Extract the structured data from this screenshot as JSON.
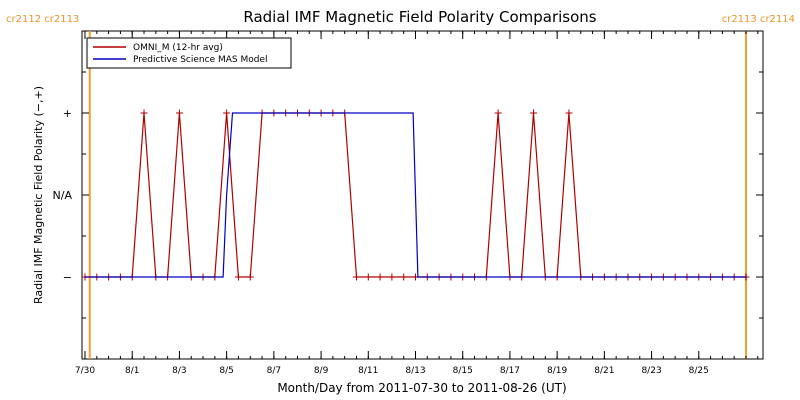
{
  "chart_data": {
    "type": "line",
    "title": "Radial IMF Magnetic Field Polarity Comparisons",
    "xlabel": "Month/Day from 2011-07-30 to 2011-08-26 (UT)",
    "ylabel": "Radial IMF Magnetic Field Polarity (−,+)",
    "x_tick_labels": [
      "7/30",
      "8/1",
      "8/3",
      "8/5",
      "8/7",
      "8/9",
      "8/11",
      "8/13",
      "8/15",
      "8/17",
      "8/19",
      "8/21",
      "8/23",
      "8/25"
    ],
    "x_tick_days": [
      0,
      2,
      4,
      6,
      8,
      10,
      12,
      14,
      16,
      18,
      20,
      22,
      24,
      26
    ],
    "x_minor_step_days": 0.5,
    "xlim": [
      0,
      28.6
    ],
    "ylim": [
      -2,
      2
    ],
    "y_ticks": [
      {
        "value": -1,
        "label": "−"
      },
      {
        "value": 0,
        "label": "N/A"
      },
      {
        "value": 1,
        "label": "+"
      }
    ],
    "carrington_boundaries": [
      {
        "day": 0.2,
        "label": "cr2112 cr2113",
        "label_anchor": "left"
      },
      {
        "day": 28.0,
        "label": "cr2113 cr2114",
        "label_anchor": "right"
      }
    ],
    "boundary_color": "#f0a030",
    "legend": {
      "position": "top-left"
    },
    "series": [
      {
        "name": "OMNI_M (12-hr avg)",
        "color": "#b00000",
        "markers": true,
        "x": [
          0,
          0.5,
          1,
          1.5,
          2,
          2.5,
          3,
          3.5,
          4,
          4.5,
          5,
          5.5,
          6,
          6.5,
          7,
          7.5,
          8,
          8.5,
          9,
          9.5,
          10,
          10.5,
          11,
          11.5,
          12,
          12.5,
          13,
          13.5,
          14,
          14.5,
          15,
          15.5,
          16,
          16.5,
          17,
          17.5,
          18,
          18.5,
          19,
          19.5,
          20,
          20.5,
          21,
          21.5,
          22,
          22.5,
          23,
          23.5,
          24,
          24.5,
          25,
          25.5,
          26,
          26.5,
          27,
          27.5,
          28
        ],
        "y": [
          -1,
          -1,
          -1,
          -1,
          -1,
          1,
          -1,
          -1,
          1,
          -1,
          -1,
          -1,
          1,
          -1,
          -1,
          1,
          1,
          1,
          1,
          1,
          1,
          1,
          1,
          -1,
          -1,
          -1,
          -1,
          -1,
          -1,
          -1,
          -1,
          -1,
          -1,
          -1,
          -1,
          1,
          -1,
          -1,
          1,
          -1,
          -1,
          1,
          -1,
          -1,
          -1,
          -1,
          -1,
          -1,
          -1,
          -1,
          -1,
          -1,
          -1,
          -1,
          -1,
          -1,
          -1
        ]
      },
      {
        "name": "Predictive Science MAS Model",
        "color": "#0000c0",
        "markers": false,
        "x": [
          0,
          5.85,
          6.0,
          6.25,
          13.9,
          14.0,
          14.1,
          28
        ],
        "y": [
          -1,
          -1,
          0,
          1,
          1,
          0,
          -1,
          -1
        ]
      }
    ]
  }
}
